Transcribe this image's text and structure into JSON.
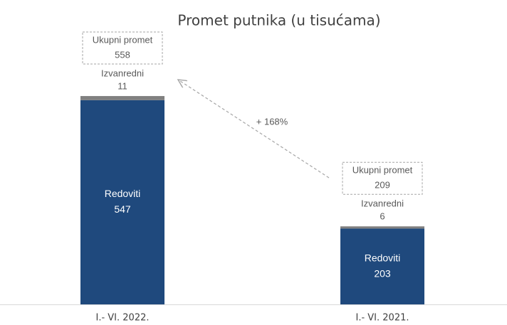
{
  "chart_data": {
    "type": "stacked_bar",
    "title": "Promet putnika (u tisućama)",
    "categories": [
      "I.- VI. 2022.",
      "I.- VI. 2021."
    ],
    "series": [
      {
        "name": "Redoviti",
        "color": "#1f497d",
        "values": [
          547,
          203
        ]
      },
      {
        "name": "Izvanredni",
        "color": "#808080",
        "values": [
          11,
          6
        ]
      }
    ],
    "totals": {
      "label": "Ukupni promet",
      "values": [
        558,
        209
      ]
    },
    "annotation": "+ 168%",
    "ylim": [
      0,
      600
    ]
  }
}
